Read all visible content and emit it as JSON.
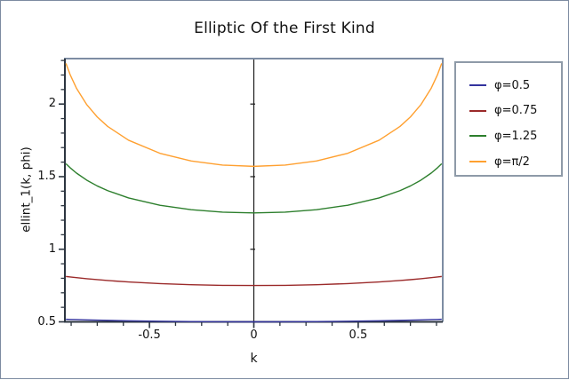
{
  "title": "Elliptic Of the First Kind",
  "colors": {
    "frame_light": "#7d8da3",
    "axis_dark": "#2c3540",
    "zero_axis": "#1a1a1a",
    "legend_border": "#8e9aa8",
    "background": "#ffffff"
  },
  "chart_data": {
    "type": "line",
    "title": "Elliptic Of the First Kind",
    "xlabel": "k",
    "ylabel": "ellint_1(k, phi)",
    "xlim": [
      -0.905,
      0.905
    ],
    "ylim": [
      0.5,
      2.313
    ],
    "grid": false,
    "legend_position": "outside-right",
    "x_ticks": [
      {
        "v": -0.5,
        "label": "-0.5"
      },
      {
        "v": 0,
        "label": "0"
      },
      {
        "v": 0.5,
        "label": "0.5"
      }
    ],
    "y_ticks": [
      {
        "v": 0.5,
        "label": "0.5"
      },
      {
        "v": 1,
        "label": "1"
      },
      {
        "v": 1.5,
        "label": "1.5"
      },
      {
        "v": 2,
        "label": "2"
      }
    ],
    "x_minor_step": 0.125,
    "y_minor_step": 0.1,
    "zero_axis_vertical": true,
    "x": [
      -0.9,
      -0.88,
      -0.85,
      -0.8,
      -0.75,
      -0.7,
      -0.6,
      -0.45,
      -0.3,
      -0.15,
      0,
      0.15,
      0.3,
      0.45,
      0.6,
      0.7,
      0.75,
      0.8,
      0.85,
      0.88,
      0.9
    ],
    "series": [
      {
        "name": "φ=0.5",
        "color": "#33339e",
        "values": [
          0.5176,
          0.5167,
          0.5155,
          0.5136,
          0.5119,
          0.5102,
          0.5074,
          0.5041,
          0.5018,
          0.5004,
          0.5,
          0.5004,
          0.5018,
          0.5041,
          0.5074,
          0.5102,
          0.5119,
          0.5136,
          0.5155,
          0.5167,
          0.5176
        ]
      },
      {
        "name": "φ=0.75",
        "color": "#9b2a2a",
        "values": [
          0.8126,
          0.8092,
          0.8044,
          0.797,
          0.7905,
          0.7846,
          0.7746,
          0.7633,
          0.7558,
          0.7514,
          0.75,
          0.7514,
          0.7558,
          0.7633,
          0.7746,
          0.7846,
          0.7905,
          0.797,
          0.8044,
          0.8092,
          0.8126
        ]
      },
      {
        "name": "φ=1.25",
        "color": "#2d7f2d",
        "values": [
          1.5894,
          1.5614,
          1.525,
          1.4756,
          1.436,
          1.4035,
          1.3535,
          1.3032,
          1.2723,
          1.2554,
          1.25,
          1.2554,
          1.2723,
          1.3032,
          1.3535,
          1.4035,
          1.436,
          1.4756,
          1.525,
          1.5614,
          1.5894
        ]
      },
      {
        "name": "φ=π/2",
        "color": "#ffa030",
        "values": [
          2.2805,
          2.2027,
          2.1099,
          1.9953,
          1.911,
          1.8457,
          1.7508,
          1.6609,
          1.608,
          1.5797,
          1.5708,
          1.5797,
          1.608,
          1.6609,
          1.7508,
          1.8457,
          1.911,
          1.9953,
          2.1099,
          2.2027,
          2.2805
        ]
      }
    ]
  }
}
